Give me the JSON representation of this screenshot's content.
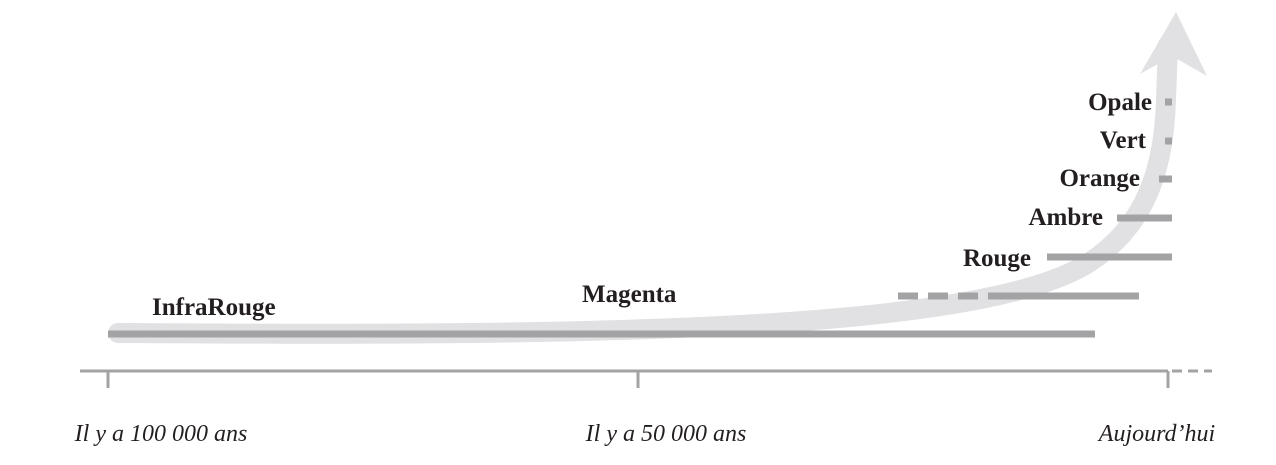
{
  "colors": {
    "stage_bar": "#a3a3a5",
    "arrow": "#e1e1e3",
    "axis": "#a3a3a5",
    "text": "#231f20"
  },
  "stages": [
    {
      "id": "infrarouge",
      "label": "InfraRouge"
    },
    {
      "id": "magenta",
      "label": "Magenta"
    },
    {
      "id": "rouge",
      "label": "Rouge"
    },
    {
      "id": "ambre",
      "label": "Ambre"
    },
    {
      "id": "orange",
      "label": "Orange"
    },
    {
      "id": "vert",
      "label": "Vert"
    },
    {
      "id": "opale",
      "label": "Opale"
    }
  ],
  "axis": {
    "ticks": [
      {
        "id": "start",
        "label": "Il y a 100 000 ans"
      },
      {
        "id": "middle",
        "label": "Il y a 50 000 ans"
      },
      {
        "id": "end",
        "label": "Aujourd’hui"
      }
    ]
  },
  "icons": {
    "arrow": "growth-arrow-icon"
  }
}
